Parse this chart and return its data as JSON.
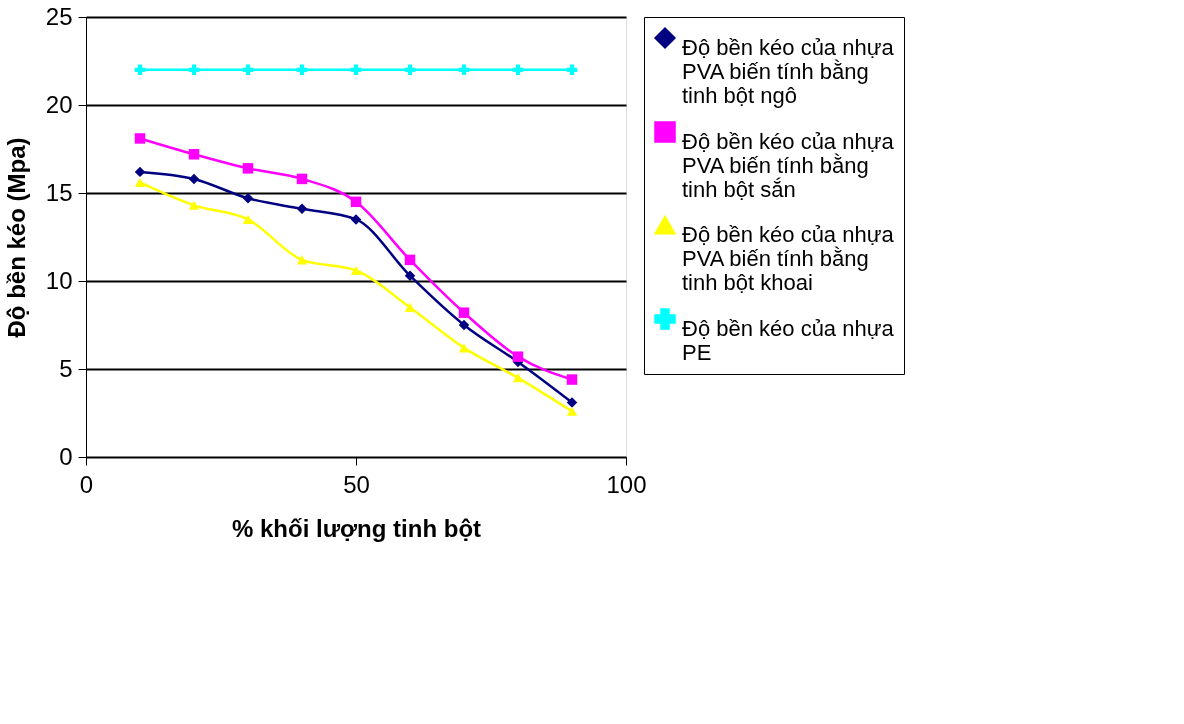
{
  "chart_data": {
    "type": "line",
    "xlabel": "% khối lượng tinh bột",
    "ylabel": "Độ bền kéo (Mpa)",
    "x": [
      10,
      20,
      30,
      40,
      50,
      60,
      70,
      80,
      90
    ],
    "series": [
      {
        "name": "Độ bền kéo của nhựa PVA biến tính bằng tinh bột ngô",
        "color": "#000080",
        "marker": "diamond",
        "values": [
          16.2,
          15.8,
          14.7,
          14.1,
          13.5,
          10.3,
          7.5,
          5.4,
          3.1
        ]
      },
      {
        "name": "Độ bền kéo của nhựa PVA biến tính bằng tinh bột sắn",
        "color": "#ff00ff",
        "marker": "square",
        "values": [
          18.1,
          17.2,
          16.4,
          15.8,
          14.5,
          11.2,
          8.2,
          5.7,
          4.4
        ]
      },
      {
        "name": "Độ bền kéo của nhựa PVA biến tính bằng tinh bột khoai",
        "color": "#ffff00",
        "marker": "triangle",
        "values": [
          15.6,
          14.3,
          13.5,
          11.2,
          10.6,
          8.5,
          6.2,
          4.5,
          2.6
        ]
      },
      {
        "name": "Độ bền kéo của nhựa PE",
        "color": "#00ffff",
        "marker": "cross",
        "values": [
          22,
          22,
          22,
          22,
          22,
          22,
          22,
          22,
          22
        ]
      }
    ],
    "xlim": [
      0,
      100
    ],
    "xticks": [
      0,
      50,
      100
    ],
    "ylim": [
      0,
      25
    ],
    "yticks": [
      0,
      5,
      10,
      15,
      20,
      25
    ],
    "grid": "y",
    "legend": "right",
    "line_style": "solid"
  }
}
